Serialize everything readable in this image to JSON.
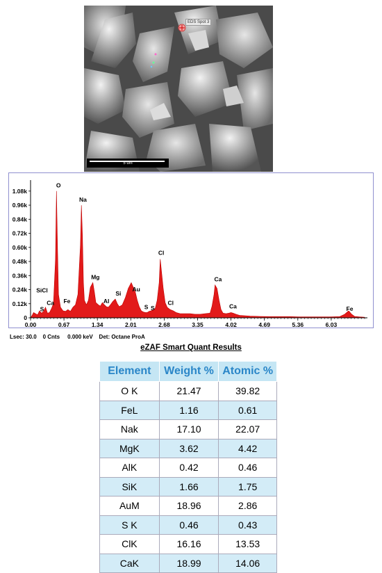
{
  "micrograph": {
    "spot_label": "EDS Spot 3",
    "scale_label": "5 um"
  },
  "chart_data": {
    "type": "line",
    "x": [
      0.0,
      0.03,
      0.06,
      0.1,
      0.14,
      0.18,
      0.22,
      0.26,
      0.3,
      0.34,
      0.38,
      0.42,
      0.46,
      0.5,
      0.52,
      0.54,
      0.56,
      0.6,
      0.65,
      0.7,
      0.75,
      0.8,
      0.85,
      0.9,
      0.95,
      1.0,
      1.02,
      1.04,
      1.06,
      1.08,
      1.12,
      1.16,
      1.2,
      1.25,
      1.28,
      1.31,
      1.36,
      1.4,
      1.44,
      1.48,
      1.52,
      1.56,
      1.6,
      1.65,
      1.7,
      1.74,
      1.78,
      1.84,
      1.9,
      1.96,
      2.02,
      2.06,
      2.1,
      2.14,
      2.18,
      2.22,
      2.26,
      2.3,
      2.34,
      2.38,
      2.42,
      2.46,
      2.5,
      2.54,
      2.58,
      2.6,
      2.62,
      2.66,
      2.7,
      2.74,
      2.8,
      2.86,
      2.92,
      3.0,
      3.1,
      3.2,
      3.3,
      3.4,
      3.5,
      3.6,
      3.64,
      3.68,
      3.7,
      3.74,
      3.78,
      3.82,
      3.86,
      3.92,
      3.98,
      4.02,
      4.06,
      4.12,
      4.2,
      4.4,
      4.6,
      4.8,
      5.0,
      5.2,
      5.4,
      5.6,
      5.8,
      6.0,
      6.2,
      6.3,
      6.38,
      6.44,
      6.5,
      6.6,
      6.7
    ],
    "y": [
      0,
      20,
      45,
      35,
      25,
      60,
      40,
      55,
      90,
      40,
      45,
      80,
      120,
      500,
      1080,
      600,
      200,
      90,
      60,
      55,
      70,
      55,
      90,
      110,
      200,
      620,
      960,
      700,
      300,
      150,
      110,
      150,
      260,
      300,
      220,
      130,
      110,
      100,
      130,
      110,
      95,
      90,
      110,
      140,
      160,
      120,
      95,
      110,
      170,
      250,
      300,
      260,
      220,
      150,
      95,
      60,
      50,
      45,
      45,
      55,
      60,
      70,
      80,
      150,
      300,
      500,
      420,
      250,
      130,
      90,
      70,
      60,
      45,
      35,
      35,
      35,
      30,
      30,
      35,
      40,
      100,
      200,
      280,
      250,
      150,
      70,
      40,
      35,
      40,
      45,
      40,
      30,
      20,
      15,
      12,
      10,
      10,
      10,
      8,
      8,
      8,
      8,
      10,
      30,
      60,
      30,
      12,
      8,
      5
    ],
    "xlim": [
      0.0,
      6.7
    ],
    "ylim": [
      0,
      1150
    ],
    "x_ticks": [
      "0.00",
      "0.67",
      "1.34",
      "2.01",
      "2.68",
      "3.35",
      "4.02",
      "4.69",
      "5.36",
      "6.03"
    ],
    "x_tick_values": [
      0.0,
      0.67,
      1.34,
      2.01,
      2.68,
      3.35,
      4.02,
      4.69,
      5.36,
      6.03
    ],
    "y_ticks": [
      "0",
      "0.12k",
      "0.24k",
      "0.36k",
      "0.48k",
      "0.60k",
      "0.72k",
      "0.84k",
      "0.96k",
      "1.08k"
    ],
    "y_tick_values": [
      0,
      120,
      240,
      360,
      480,
      600,
      720,
      840,
      960,
      1080
    ],
    "peak_labels": [
      {
        "text": "SiCl",
        "x": 0.23,
        "y": 215
      },
      {
        "text": "S",
        "x": 0.23,
        "y": 55
      },
      {
        "text": "Ca",
        "x": 0.4,
        "y": 110
      },
      {
        "text": "O",
        "x": 0.56,
        "y": 1110
      },
      {
        "text": "Fe",
        "x": 0.73,
        "y": 125
      },
      {
        "text": "Na",
        "x": 1.05,
        "y": 990
      },
      {
        "text": "Mg",
        "x": 1.3,
        "y": 330
      },
      {
        "text": "Al",
        "x": 1.52,
        "y": 125
      },
      {
        "text": "Si",
        "x": 1.76,
        "y": 190
      },
      {
        "text": "Au",
        "x": 2.12,
        "y": 225
      },
      {
        "text": "S",
        "x": 2.32,
        "y": 75
      },
      {
        "text": "S",
        "x": 2.45,
        "y": 65
      },
      {
        "text": "Cl",
        "x": 2.62,
        "y": 535
      },
      {
        "text": "Cl",
        "x": 2.81,
        "y": 110
      },
      {
        "text": "Ca",
        "x": 3.76,
        "y": 310
      },
      {
        "text": "Ca",
        "x": 4.06,
        "y": 80
      },
      {
        "text": "Fe",
        "x": 6.4,
        "y": 60
      }
    ],
    "fill_color": "#e21a1a",
    "line_color": "#c00000",
    "grid": false
  },
  "status": {
    "lsec": "Lsec: 30.0",
    "cnts": "0 Cnts",
    "kev": "0.000 keV",
    "det": "Det: Octane ProA"
  },
  "results_title": "eZAF Smart Quant Results",
  "table": {
    "headers": [
      "Element",
      "Weight %",
      "Atomic %"
    ],
    "rows": [
      [
        "O K",
        "21.47",
        "39.82"
      ],
      [
        "FeL",
        "1.16",
        "0.61"
      ],
      [
        "Nak",
        "17.10",
        "22.07"
      ],
      [
        "MgK",
        "3.62",
        "4.42"
      ],
      [
        "AlK",
        "0.42",
        "0.46"
      ],
      [
        "SiK",
        "1.66",
        "1.75"
      ],
      [
        "AuM",
        "18.96",
        "2.86"
      ],
      [
        "S K",
        "0.46",
        "0.43"
      ],
      [
        "ClK",
        "16.16",
        "13.53"
      ],
      [
        "CaK",
        "18.99",
        "14.06"
      ]
    ]
  }
}
